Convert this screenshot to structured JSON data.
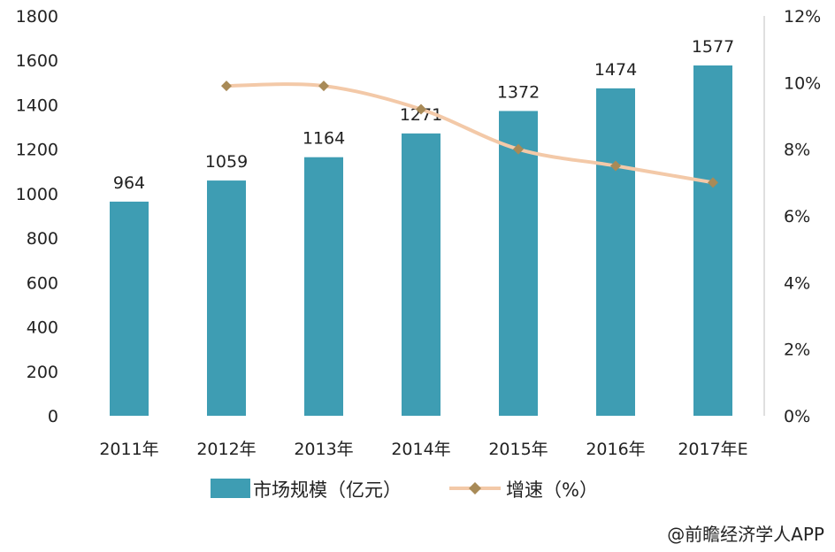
{
  "chart_data": {
    "type": "bar",
    "categories": [
      "2011年",
      "2012年",
      "2013年",
      "2014年",
      "2015年",
      "2016年",
      "2017年E"
    ],
    "series": [
      {
        "name": "市场规模（亿元）",
        "type": "bar",
        "axis": "left",
        "color": "#3e9db3",
        "values": [
          964,
          1059,
          1164,
          1271,
          1372,
          1474,
          1577
        ],
        "data_labels": [
          "964",
          "1059",
          "1164",
          "1271",
          "1372",
          "1474",
          "1577"
        ]
      },
      {
        "name": "增速（%）",
        "type": "line",
        "axis": "right",
        "color": "#f3c9a8",
        "marker_color": "#a88a57",
        "values": [
          null,
          9.9,
          9.9,
          9.2,
          8.0,
          7.5,
          7.0
        ]
      }
    ],
    "y_left": {
      "ylim": [
        0,
        1800
      ],
      "ticks": [
        "0",
        "200",
        "400",
        "600",
        "800",
        "1000",
        "1200",
        "1400",
        "1600",
        "1800"
      ]
    },
    "y_right": {
      "ylim": [
        0,
        12
      ],
      "ticks": [
        "0%",
        "2%",
        "4%",
        "6%",
        "8%",
        "10%",
        "12%"
      ]
    },
    "grid": false,
    "legend_position": "bottom"
  },
  "credit": "@前瞻经济学人APP"
}
